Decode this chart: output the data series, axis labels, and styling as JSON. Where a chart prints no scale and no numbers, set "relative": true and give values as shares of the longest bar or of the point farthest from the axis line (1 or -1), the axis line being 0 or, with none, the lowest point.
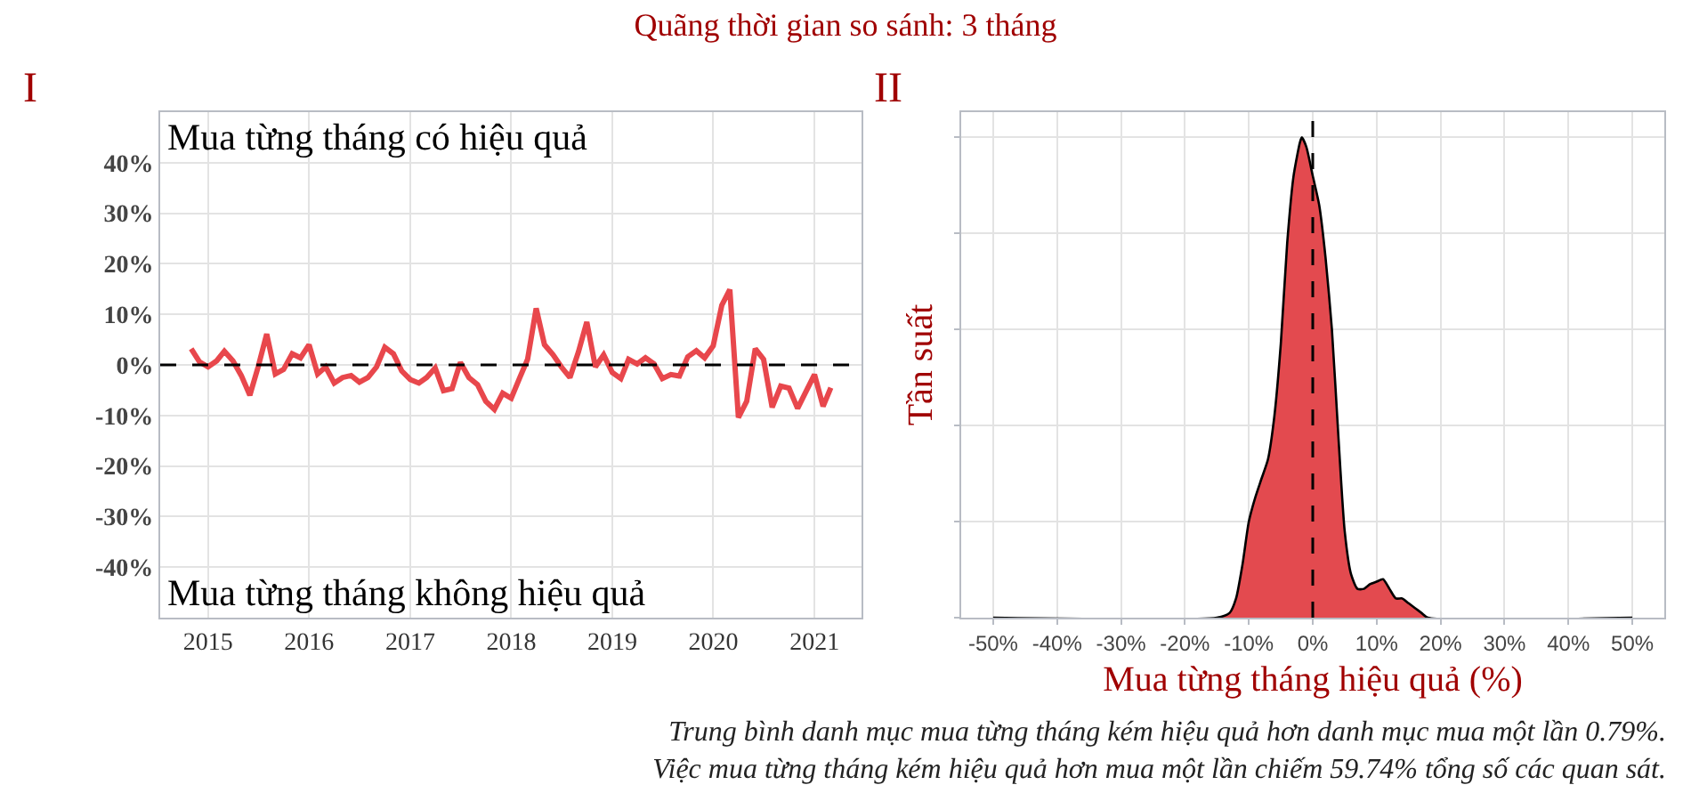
{
  "chart_data": [
    {
      "type": "line",
      "title": "Quãng thời gian so sánh: 3 tháng",
      "subtitle": "I",
      "annotations": [
        "Mua từng tháng có hiệu quả",
        "Mua từng tháng không hiệu quả"
      ],
      "x": [
        "2014-11",
        "2014-12",
        "2015-01",
        "2015-02",
        "2015-03",
        "2015-04",
        "2015-05",
        "2015-06",
        "2015-07",
        "2015-08",
        "2015-09",
        "2015-10",
        "2015-11",
        "2015-12",
        "2016-01",
        "2016-02",
        "2016-03",
        "2016-04",
        "2016-05",
        "2016-06",
        "2016-07",
        "2016-08",
        "2016-09",
        "2016-10",
        "2016-11",
        "2016-12",
        "2017-01",
        "2017-02",
        "2017-03",
        "2017-04",
        "2017-05",
        "2017-06",
        "2017-07",
        "2017-08",
        "2017-09",
        "2017-10",
        "2017-11",
        "2017-12",
        "2018-01",
        "2018-02",
        "2018-03",
        "2018-04",
        "2018-05",
        "2018-06",
        "2018-07",
        "2018-08",
        "2018-09",
        "2018-10",
        "2018-11",
        "2018-12",
        "2019-01",
        "2019-02",
        "2019-03",
        "2019-04",
        "2019-05",
        "2019-06",
        "2019-07",
        "2019-08",
        "2019-09",
        "2019-10",
        "2019-11",
        "2019-12",
        "2020-01",
        "2020-02",
        "2020-03",
        "2020-04",
        "2020-05",
        "2020-06",
        "2020-07",
        "2020-08",
        "2020-09",
        "2020-10",
        "2020-11",
        "2020-12",
        "2021-01",
        "2021-02",
        "2021-03"
      ],
      "series": [
        {
          "color": "#e8474c",
          "values": [
            3.2,
            0.6,
            -0.4,
            0.8,
            2.7,
            0.8,
            -2.1,
            -6,
            -0.4,
            6.1,
            -1.8,
            -0.9,
            2.2,
            1.4,
            4,
            -1.8,
            -0.4,
            -3.6,
            -2.5,
            -2.1,
            -3.4,
            -2.5,
            -0.4,
            3.5,
            2.2,
            -1.2,
            -2.9,
            -3.6,
            -2.5,
            -0.6,
            -5.1,
            -4.7,
            0.5,
            -2.5,
            -3.9,
            -7.2,
            -8.8,
            -5.6,
            -6.6,
            -2.5,
            1.1,
            11.2,
            4,
            2,
            -0.4,
            -2.5,
            2.6,
            8.5,
            -0.4,
            2,
            -1.5,
            -2.7,
            1.1,
            0.2,
            1.4,
            0.2,
            -2.7,
            -1.9,
            -2.2,
            1.6,
            2.8,
            1.4,
            3.8,
            11.8,
            14.9,
            -10.4,
            -7.2,
            3.2,
            1.1,
            -8.4,
            -4.2,
            -4.6,
            -8.6,
            -5.3,
            -1.9,
            -8.2,
            -4.5
          ]
        }
      ],
      "xlim": [
        "2014-07-12",
        "2021-06-20"
      ],
      "xticks": [
        {
          "value": "2015-01-01",
          "label": "2015"
        },
        {
          "value": "2016-01-01",
          "label": "2016"
        },
        {
          "value": "2017-01-01",
          "label": "2017"
        },
        {
          "value": "2018-01-01",
          "label": "2018"
        },
        {
          "value": "2019-01-01",
          "label": "2019"
        },
        {
          "value": "2020-01-01",
          "label": "2020"
        },
        {
          "value": "2021-01-01",
          "label": "2021"
        }
      ],
      "ylim": [
        -50,
        50
      ],
      "yticks": [
        {
          "value": -40,
          "label": "-40%"
        },
        {
          "value": -30,
          "label": "-30%"
        },
        {
          "value": -20,
          "label": "-20%"
        },
        {
          "value": -10,
          "label": "-10%"
        },
        {
          "value": 0,
          "label": "0%"
        },
        {
          "value": 10,
          "label": "10%"
        },
        {
          "value": 20,
          "label": "20%"
        },
        {
          "value": 30,
          "label": "30%"
        },
        {
          "value": 40,
          "label": "40%"
        }
      ],
      "ref_lines": [
        {
          "axis": "y",
          "value": 0,
          "color": "#000000",
          "line_style": "dashed"
        }
      ],
      "grid": true
    },
    {
      "type": "area",
      "title": "II",
      "xlabel": "Mua từng tháng hiệu quả (%)",
      "ylabel": "Tần suất",
      "relative": true,
      "annotations": [
        "Trung bình danh mục mua từng tháng kém hiệu quả hơn danh mục mua một lần 0.79%.",
        "Việc mua từng tháng kém hiệu quả hơn mua một lần chiếm 59.74% tổng số các quan sát."
      ],
      "x": [
        -50,
        -15,
        -13,
        -12,
        -11,
        -10,
        -9,
        -8,
        -7,
        -6,
        -5,
        -4,
        -3,
        -2,
        -1.7,
        -1,
        0,
        1,
        2,
        3,
        4,
        5,
        6,
        7,
        8,
        9,
        10,
        11,
        12,
        13,
        14,
        15,
        16,
        17,
        18,
        50
      ],
      "series": [
        {
          "color": "#e34a4f",
          "values": [
            0,
            0,
            0.01,
            0.04,
            0.11,
            0.2,
            0.25,
            0.29,
            0.33,
            0.42,
            0.57,
            0.78,
            0.92,
            0.99,
            1,
            0.98,
            0.92,
            0.86,
            0.75,
            0.6,
            0.38,
            0.18,
            0.09,
            0.06,
            0.06,
            0.07,
            0.075,
            0.08,
            0.06,
            0.04,
            0.04,
            0.03,
            0.02,
            0.01,
            0,
            0
          ]
        }
      ],
      "xlim": [
        -55,
        55
      ],
      "xticks": [
        {
          "value": -50,
          "label": "-50%"
        },
        {
          "value": -40,
          "label": "-40%"
        },
        {
          "value": -30,
          "label": "-30%"
        },
        {
          "value": -20,
          "label": "-20%"
        },
        {
          "value": -10,
          "label": "-10%"
        },
        {
          "value": 0,
          "label": "0%"
        },
        {
          "value": 10,
          "label": "10%"
        },
        {
          "value": 20,
          "label": "20%"
        },
        {
          "value": 30,
          "label": "30%"
        },
        {
          "value": 40,
          "label": "40%"
        },
        {
          "value": 50,
          "label": "50%"
        }
      ],
      "ref_lines": [
        {
          "axis": "x",
          "value": 0,
          "color": "#000000",
          "line_style": "dashed"
        }
      ],
      "grid": true
    }
  ]
}
